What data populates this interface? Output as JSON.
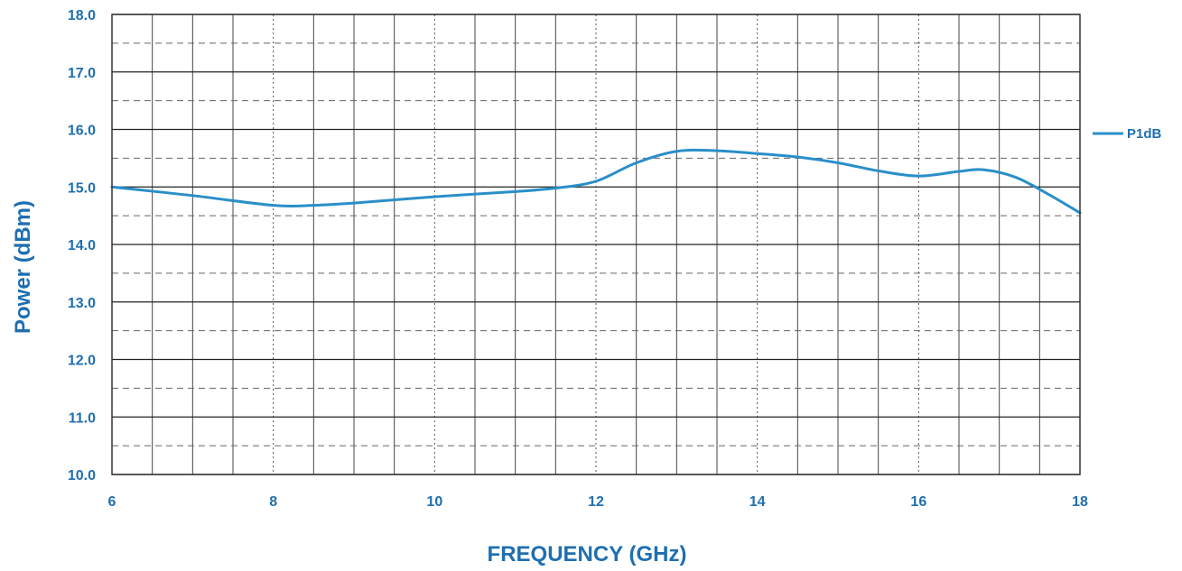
{
  "chart_data": {
    "type": "line",
    "xlabel": "FREQUENCY (GHz)",
    "ylabel": "Power (dBm)",
    "xlim": [
      6,
      18
    ],
    "ylim": [
      10,
      18
    ],
    "x_ticks": [
      "6",
      "8",
      "10",
      "12",
      "14",
      "16",
      "18"
    ],
    "y_ticks": [
      "10.0",
      "11.0",
      "12.0",
      "13.0",
      "14.0",
      "15.0",
      "16.0",
      "17.0",
      "18.0"
    ],
    "grid": true,
    "legend_position": "right",
    "series": [
      {
        "name": "P1dB",
        "color": "#2a8fc9",
        "x": [
          6,
          7,
          8,
          8.5,
          9,
          10,
          11,
          11.5,
          12,
          12.5,
          13,
          13.5,
          14,
          14.5,
          15,
          15.5,
          16,
          16.5,
          16.8,
          17.2,
          17.6,
          18
        ],
        "y": [
          15.0,
          14.85,
          14.68,
          14.68,
          14.72,
          14.83,
          14.92,
          14.98,
          15.1,
          15.42,
          15.62,
          15.63,
          15.58,
          15.52,
          15.42,
          15.28,
          15.19,
          15.27,
          15.3,
          15.17,
          14.88,
          14.55
        ]
      }
    ]
  }
}
